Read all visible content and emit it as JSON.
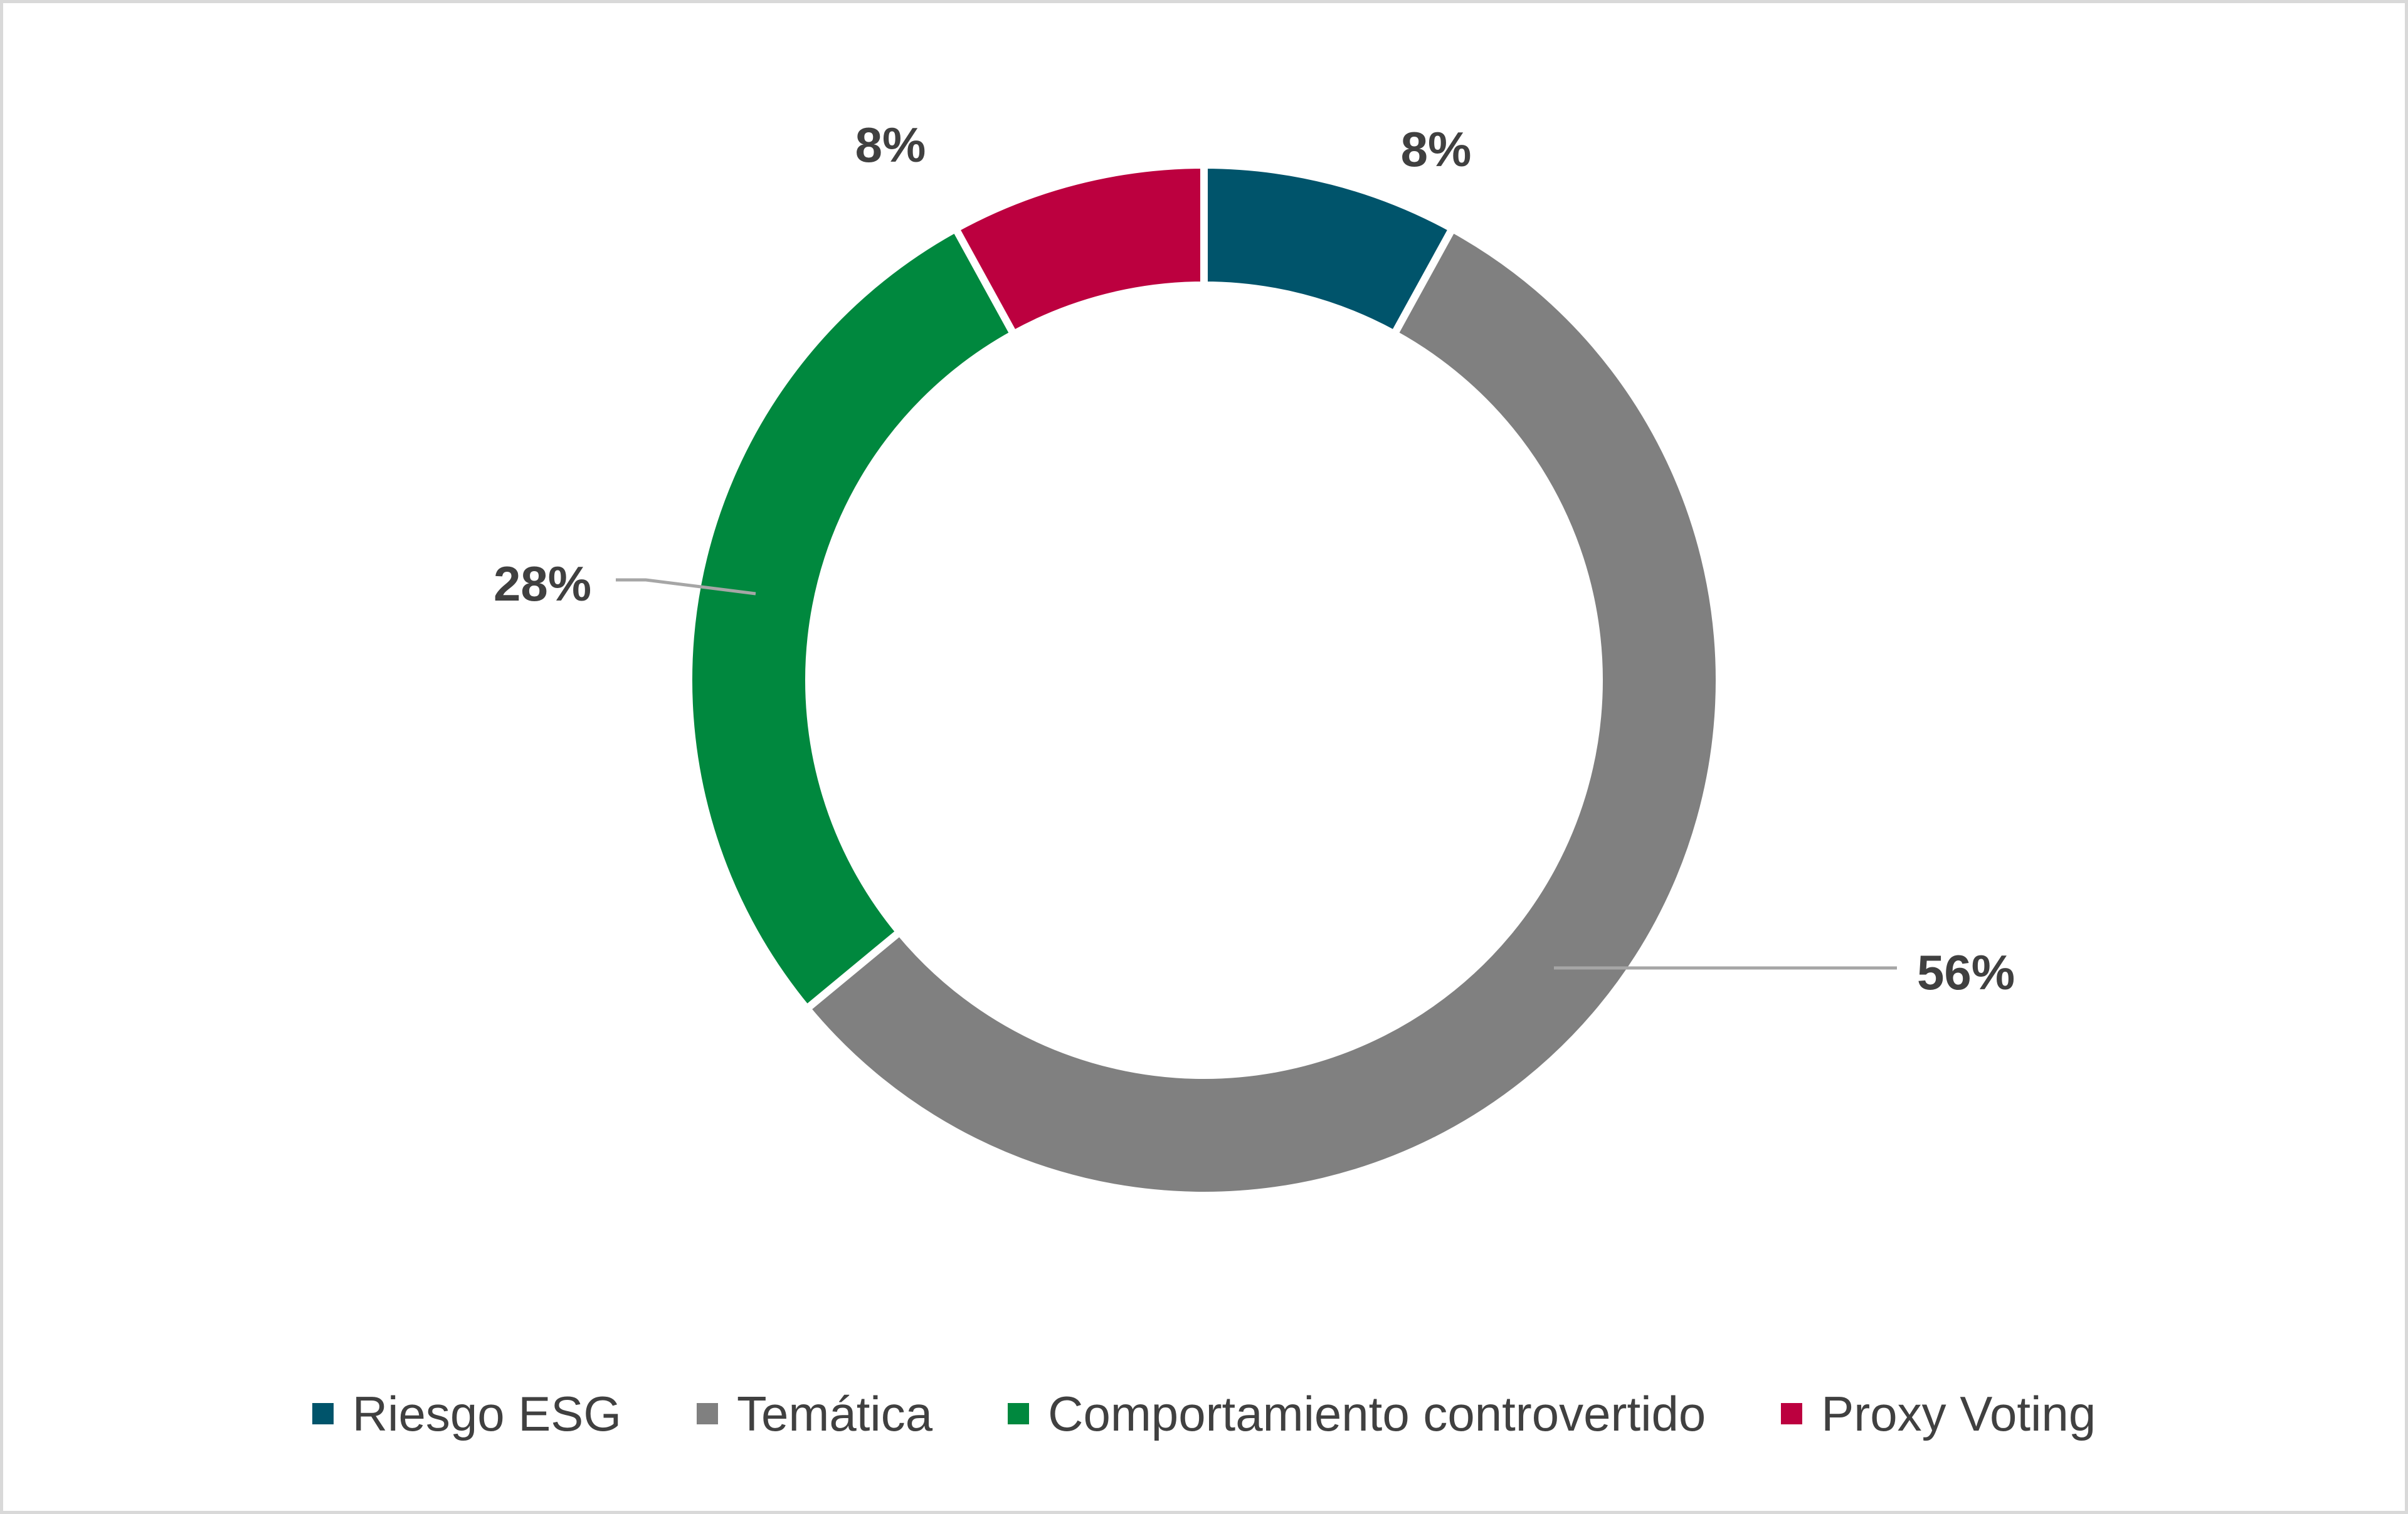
{
  "chart_data": {
    "type": "pie",
    "variant": "donut",
    "categories": [
      "Riesgo ESG",
      "Temática",
      "Comportamiento controvertido",
      "Proxy Voting"
    ],
    "values": [
      8,
      56,
      28,
      8
    ],
    "labels": [
      "8%",
      "56%",
      "28%",
      "8%"
    ],
    "colors": [
      "#00546b",
      "#808080",
      "#00883e",
      "#bc003f"
    ],
    "legend_position": "bottom"
  }
}
